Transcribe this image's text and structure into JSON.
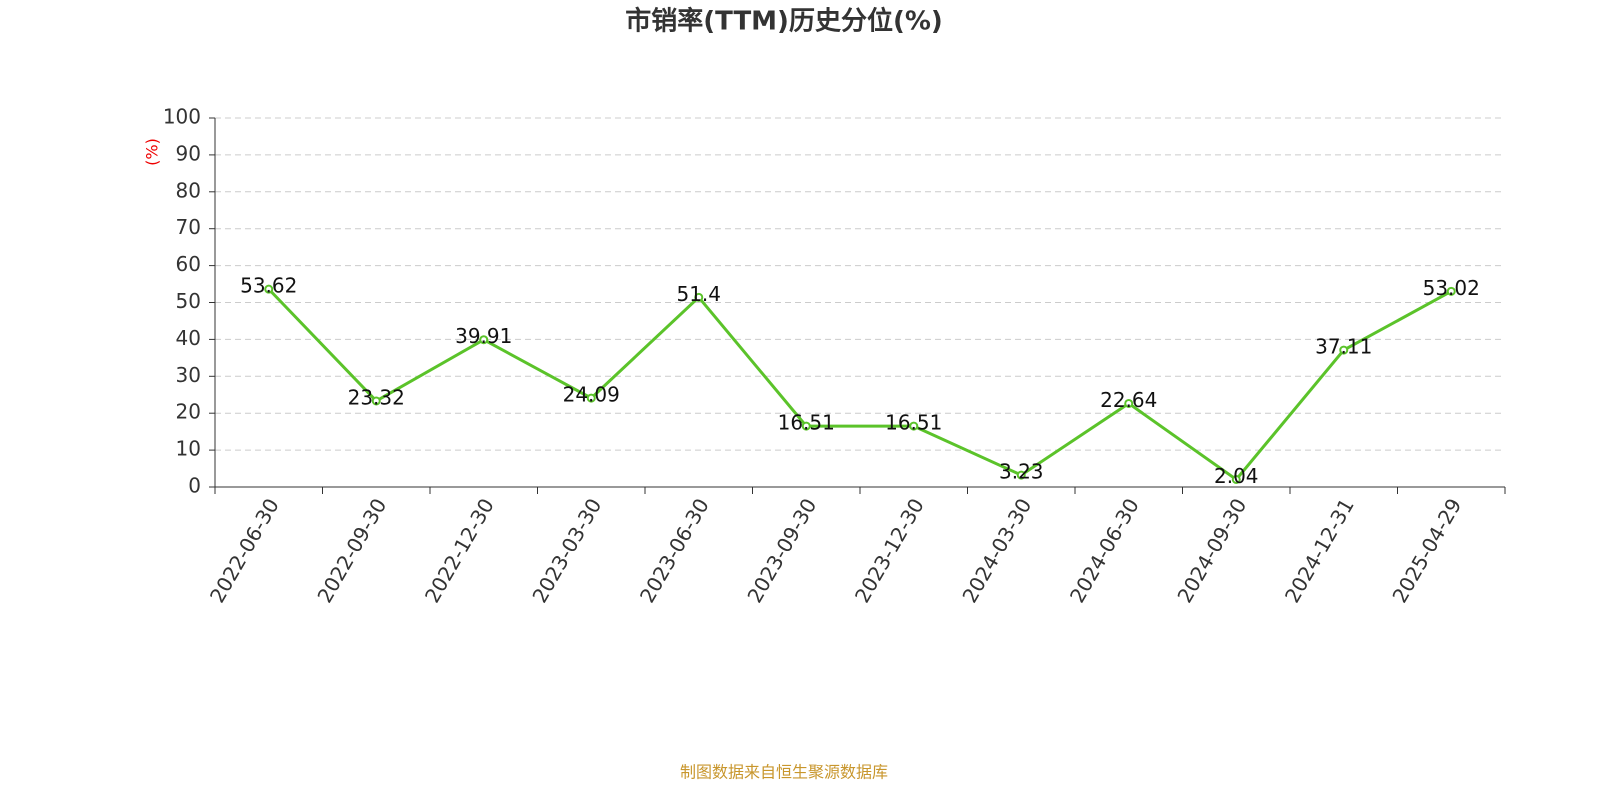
{
  "chart_data": {
    "type": "line",
    "title": "市销率(TTM)历史分位(%)",
    "y_label": "(%)",
    "categories": [
      "2022-06-30",
      "2022-09-30",
      "2022-12-30",
      "2023-03-30",
      "2023-06-30",
      "2023-09-30",
      "2023-12-30",
      "2024-03-30",
      "2024-06-30",
      "2024-09-30",
      "2024-12-31",
      "2025-04-29"
    ],
    "values": [
      53.62,
      23.32,
      39.91,
      24.09,
      51.4,
      16.51,
      16.51,
      3.23,
      22.64,
      2.04,
      37.11,
      53.02
    ],
    "color": "#5bc32a",
    "ylim": [
      0,
      100
    ],
    "yticks": [
      0,
      10,
      20,
      30,
      40,
      50,
      60,
      70,
      80,
      90,
      100
    ],
    "grid": true,
    "source": "制图数据来自恒生聚源数据库"
  }
}
